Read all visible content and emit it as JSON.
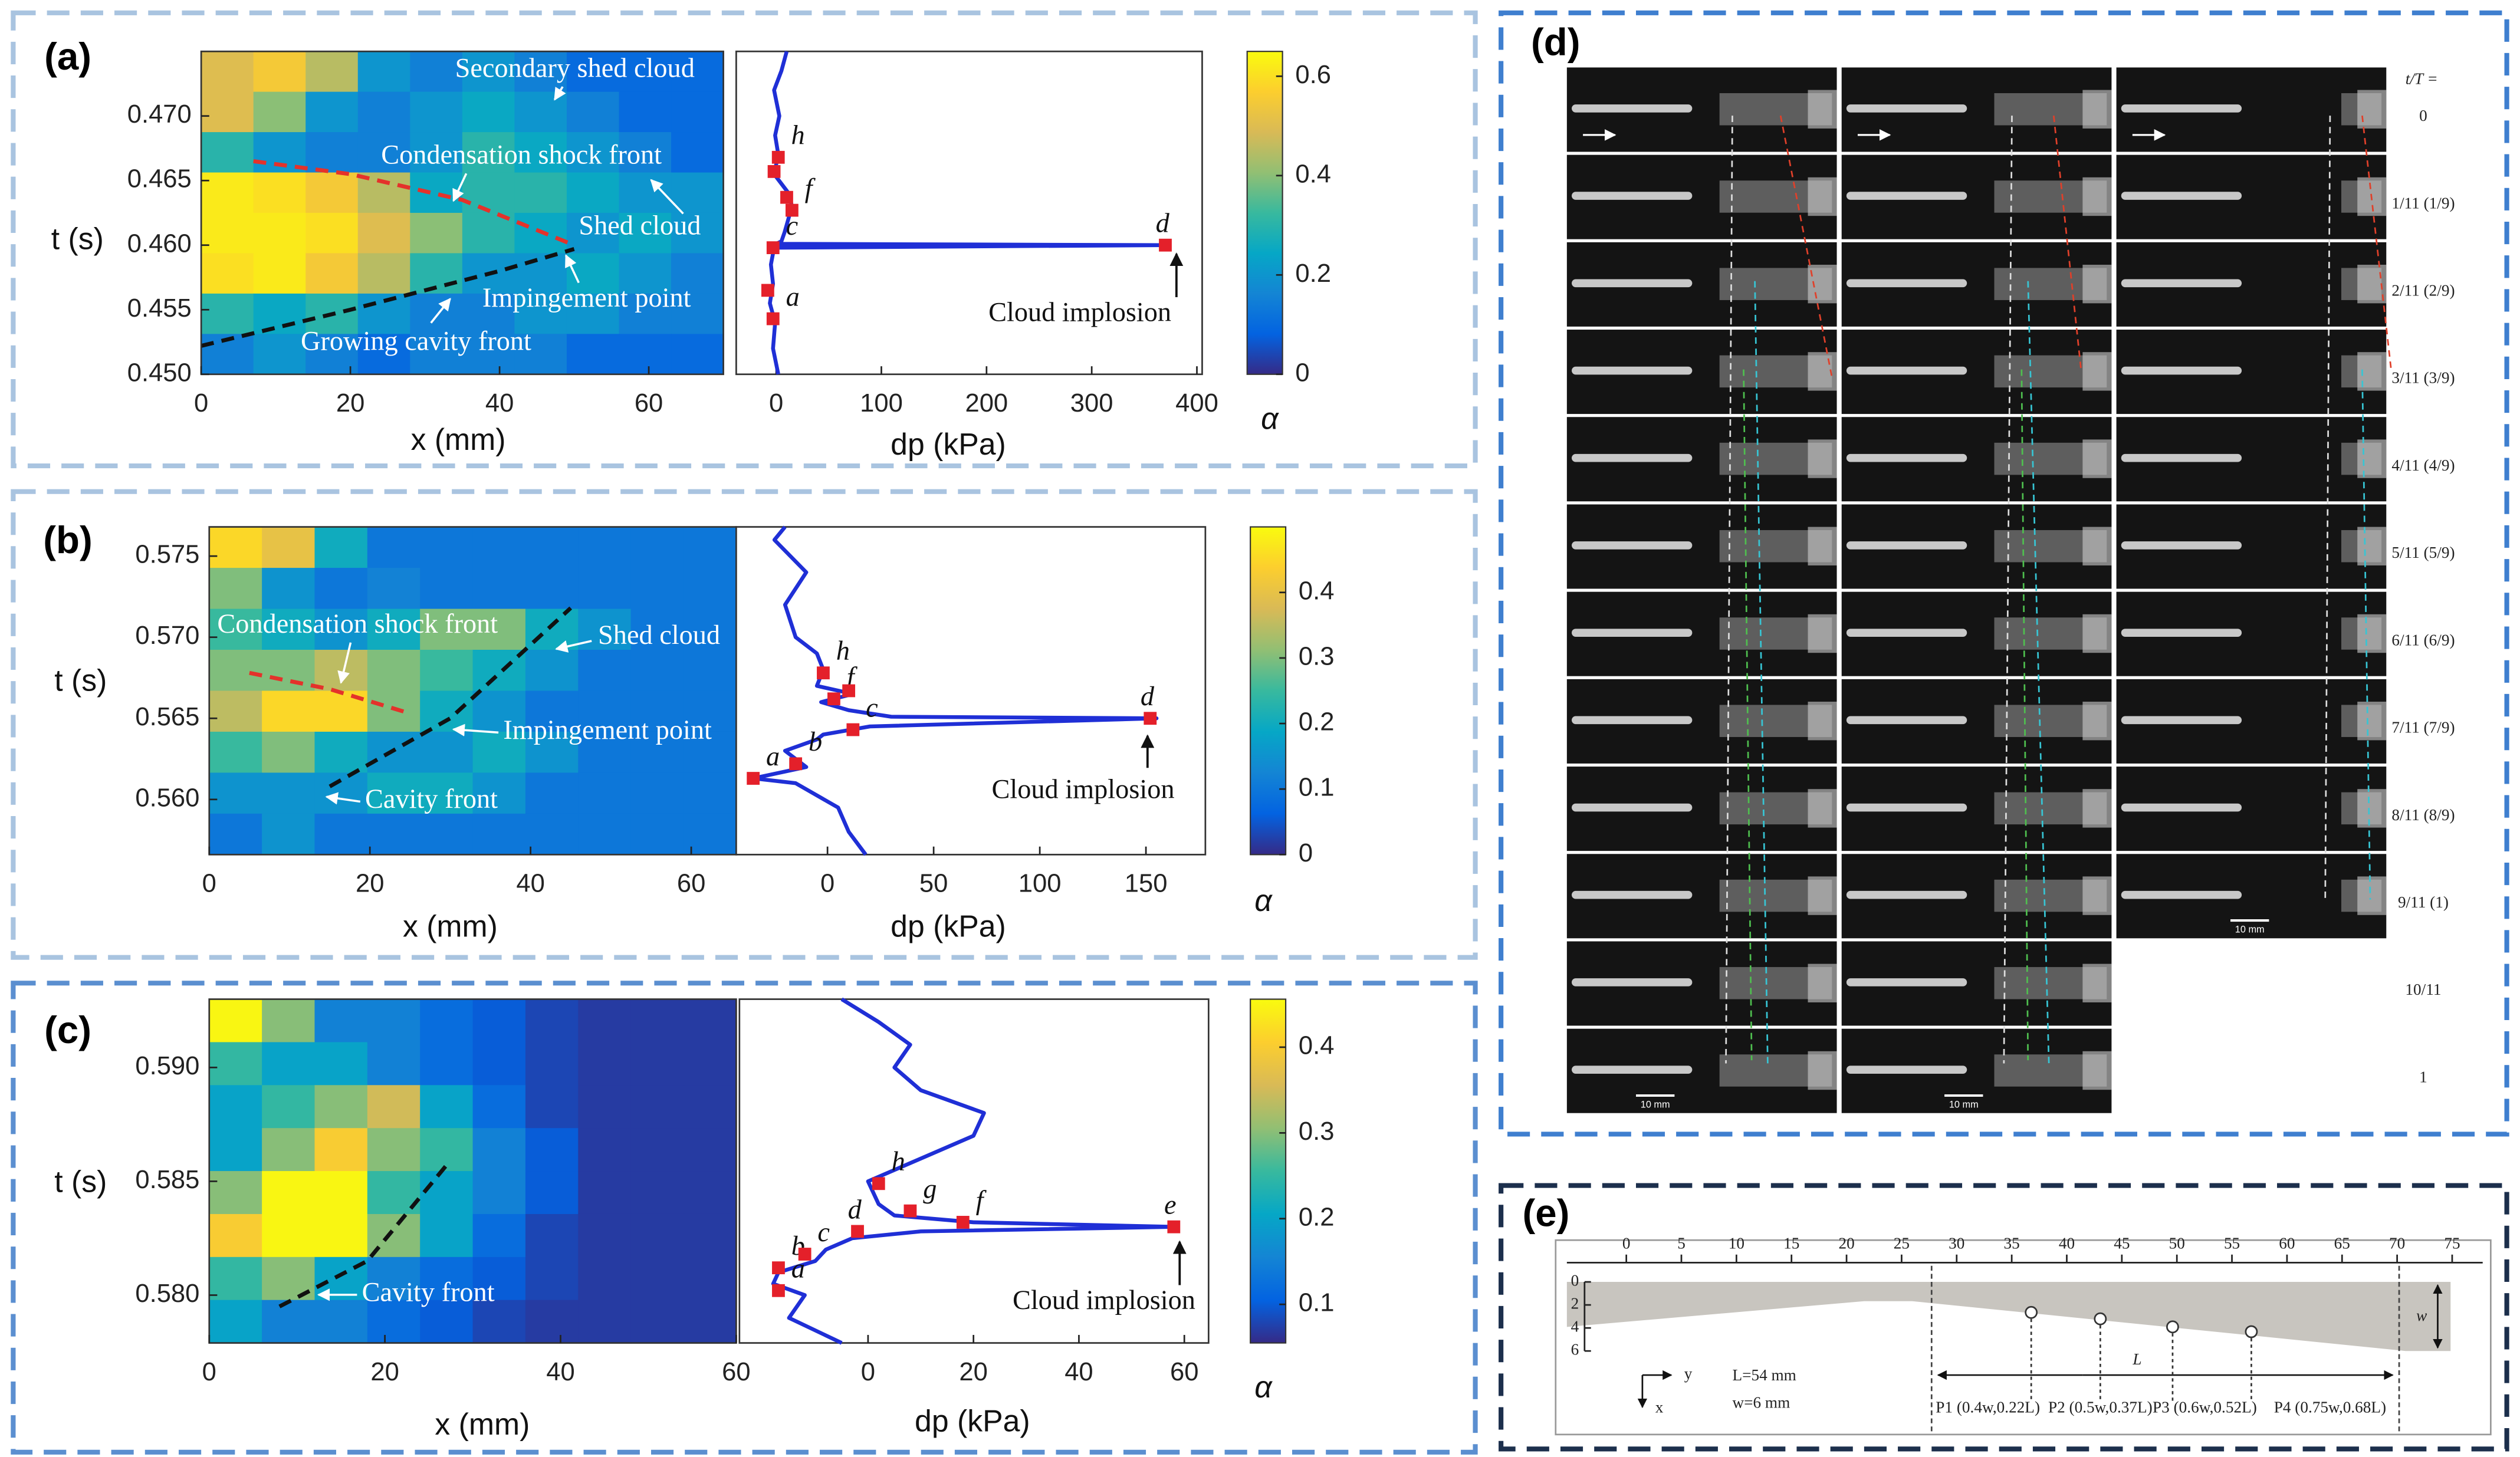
{
  "chart_data": [
    {
      "type": "heatmap",
      "panel_label": "(a)",
      "xlabel": "x (mm)",
      "ylabel": "t (s)",
      "xlim": [
        0,
        70
      ],
      "xticks": [
        0,
        20,
        40,
        60
      ],
      "ylim": [
        0.45,
        0.475
      ],
      "yticks": [
        {
          "value": 0.45,
          "label": "0.450"
        },
        0.455,
        {
          "value": 0.46,
          "label": "0.460"
        },
        0.465,
        {
          "value": 0.47,
          "label": "0.470"
        }
      ],
      "clim": [
        0,
        0.65
      ],
      "cticks": [
        0,
        0.2,
        0.4,
        0.6
      ],
      "clabel": "α",
      "alpha": [
        [
          0.5,
          0.55,
          0.45,
          0.2,
          0.15,
          0.2,
          0.15,
          0.1,
          0.1,
          0.1
        ],
        [
          0.5,
          0.4,
          0.2,
          0.15,
          0.2,
          0.25,
          0.2,
          0.15,
          0.1,
          0.1
        ],
        [
          0.3,
          0.2,
          0.15,
          0.15,
          0.2,
          0.3,
          0.25,
          0.2,
          0.15,
          0.1
        ],
        [
          0.62,
          0.6,
          0.55,
          0.45,
          0.25,
          0.3,
          0.3,
          0.25,
          0.2,
          0.2
        ],
        [
          0.62,
          0.62,
          0.6,
          0.5,
          0.4,
          0.3,
          0.25,
          0.2,
          0.25,
          0.2
        ],
        [
          0.6,
          0.62,
          0.55,
          0.45,
          0.3,
          0.2,
          0.2,
          0.25,
          0.2,
          0.15
        ],
        [
          0.3,
          0.25,
          0.3,
          0.2,
          0.15,
          0.15,
          0.2,
          0.2,
          0.15,
          0.15
        ],
        [
          0.15,
          0.2,
          0.15,
          0.1,
          0.15,
          0.15,
          0.15,
          0.1,
          0.1,
          0.1
        ]
      ],
      "fronts": [
        {
          "color": "#e4322b",
          "x": [
            7,
            20,
            35,
            50
          ],
          "y": [
            0.4665,
            0.4655,
            0.4635,
            0.46
          ]
        },
        {
          "color": "#111111",
          "x": [
            0,
            20,
            40,
            50
          ],
          "y": [
            0.4522,
            0.455,
            0.458,
            0.4597
          ]
        }
      ],
      "annotations": [
        "Secondary shed cloud",
        "Condensation shock front",
        "Shed cloud",
        "Impingement point",
        "Growing cavity front"
      ]
    },
    {
      "type": "line",
      "xlabel": "dp (kPa)",
      "xlim": [
        -38,
        405
      ],
      "xticks": [
        0,
        100,
        200,
        300,
        400
      ],
      "ylim": [
        0.45,
        0.475
      ],
      "color": "#1f2fd6",
      "x": [
        2,
        -3,
        -1,
        -6,
        -3,
        -5,
        -2,
        370,
        0,
        5,
        8,
        15,
        12,
        -2,
        2,
        -1,
        3,
        -2,
        5,
        10
      ],
      "y": [
        0.45,
        0.452,
        0.454,
        0.4555,
        0.457,
        0.4585,
        0.4598,
        0.46,
        0.4601,
        0.4603,
        0.461,
        0.463,
        0.464,
        0.4655,
        0.467,
        0.4685,
        0.47,
        0.472,
        0.4735,
        0.475
      ],
      "markers": {
        "color": "#e4202a",
        "x": [
          -3,
          -8,
          -3,
          370,
          15,
          10,
          -2,
          2
        ],
        "y": [
          0.4543,
          0.4565,
          0.4598,
          0.46,
          0.4627,
          0.4637,
          0.4657,
          0.4668
        ],
        "labels": [
          "a",
          null,
          "c",
          "d",
          "f",
          null,
          null,
          "h"
        ]
      },
      "annotations": [
        "Cloud implosion"
      ]
    },
    {
      "type": "heatmap",
      "panel_label": "(b)",
      "xlabel": "x (mm)",
      "ylabel": "t (s)",
      "xlim": [
        0,
        65.6
      ],
      "xticks": [
        0,
        20,
        40,
        60
      ],
      "ylim": [
        0.5566,
        0.5768
      ],
      "yticks": [
        {
          "value": 0.56,
          "label": "0.560"
        },
        0.565,
        {
          "value": 0.57,
          "label": "0.570"
        },
        0.575
      ],
      "clim": [
        0,
        0.5
      ],
      "cticks": [
        0,
        0.1,
        0.2,
        0.3,
        0.4
      ],
      "clabel": "α",
      "alpha": [
        [
          0.45,
          0.4,
          0.2,
          0.1,
          0.1,
          0.1,
          0.1,
          0.1,
          0.1,
          0.1
        ],
        [
          0.3,
          0.15,
          0.1,
          0.12,
          0.1,
          0.1,
          0.1,
          0.1,
          0.1,
          0.1
        ],
        [
          0.25,
          0.2,
          0.15,
          0.2,
          0.3,
          0.3,
          0.2,
          0.15,
          0.1,
          0.1
        ],
        [
          0.3,
          0.3,
          0.35,
          0.3,
          0.25,
          0.2,
          0.15,
          0.1,
          0.1,
          0.1
        ],
        [
          0.35,
          0.45,
          0.45,
          0.3,
          0.2,
          0.15,
          0.1,
          0.1,
          0.1,
          0.1
        ],
        [
          0.25,
          0.3,
          0.2,
          0.15,
          0.15,
          0.2,
          0.15,
          0.1,
          0.1,
          0.1
        ],
        [
          0.15,
          0.15,
          0.15,
          0.2,
          0.2,
          0.15,
          0.1,
          0.1,
          0.1,
          0.1
        ],
        [
          0.1,
          0.15,
          0.1,
          0.1,
          0.1,
          0.1,
          0.1,
          0.1,
          0.1,
          0.1
        ]
      ],
      "fronts": [
        {
          "color": "#e4322b",
          "x": [
            5,
            15,
            25
          ],
          "y": [
            0.5678,
            0.5668,
            0.5653
          ]
        },
        {
          "color": "#111111",
          "x": [
            15,
            30,
            45
          ],
          "y": [
            0.5608,
            0.565,
            0.5718
          ]
        }
      ],
      "annotations": [
        "Condensation shock front",
        "Shed cloud",
        "Impingement point",
        "Cavity front"
      ]
    },
    {
      "type": "line",
      "xlabel": "dp (kPa)",
      "xlim": [
        -43,
        178
      ],
      "xticks": [
        0,
        50,
        100,
        150
      ],
      "ylim": [
        0.5566,
        0.5768
      ],
      "color": "#1f2fd6",
      "x": [
        18,
        10,
        5,
        -15,
        -35,
        -10,
        -20,
        -5,
        -2,
        20,
        155,
        30,
        10,
        -3,
        12,
        -5,
        -2,
        -5,
        -15,
        -20,
        -10,
        -25,
        -20
      ],
      "y": [
        0.5566,
        0.558,
        0.5595,
        0.561,
        0.5613,
        0.562,
        0.563,
        0.5637,
        0.564,
        0.5645,
        0.565,
        0.5651,
        0.5655,
        0.566,
        0.5665,
        0.567,
        0.568,
        0.569,
        0.57,
        0.572,
        0.574,
        0.576,
        0.5768
      ],
      "markers": {
        "color": "#e4202a",
        "x": [
          -35,
          -15,
          12,
          152,
          3,
          10,
          -2
        ],
        "y": [
          0.5613,
          0.5622,
          0.5643,
          0.565,
          0.5662,
          0.5667,
          0.5678
        ],
        "labels": [
          "a",
          "b",
          "c",
          "d",
          "f",
          null,
          "h"
        ]
      },
      "annotations": [
        "Cloud implosion"
      ]
    },
    {
      "type": "heatmap",
      "panel_label": "(c)",
      "xlabel": "x (mm)",
      "ylabel": "t (s)",
      "xlim": [
        0,
        60
      ],
      "xticks": [
        0,
        20,
        40,
        60
      ],
      "ylim": [
        0.5779,
        0.593
      ],
      "yticks": [
        {
          "value": 0.58,
          "label": "0.580"
        },
        0.585,
        {
          "value": 0.59,
          "label": "0.590"
        }
      ],
      "clim": [
        0.055,
        0.456
      ],
      "cticks": [
        0.1,
        0.2,
        0.3,
        0.4
      ],
      "clabel": "α",
      "alpha": [
        [
          0.45,
          0.3,
          0.15,
          0.15,
          0.12,
          0.1,
          0.08,
          0.07,
          0.07,
          0.07
        ],
        [
          0.25,
          0.2,
          0.2,
          0.15,
          0.12,
          0.1,
          0.08,
          0.07,
          0.07,
          0.07
        ],
        [
          0.2,
          0.25,
          0.3,
          0.35,
          0.2,
          0.12,
          0.08,
          0.07,
          0.07,
          0.07
        ],
        [
          0.2,
          0.3,
          0.4,
          0.3,
          0.25,
          0.15,
          0.1,
          0.07,
          0.07,
          0.07
        ],
        [
          0.3,
          0.45,
          0.45,
          0.25,
          0.2,
          0.15,
          0.1,
          0.07,
          0.07,
          0.07
        ],
        [
          0.4,
          0.45,
          0.45,
          0.3,
          0.2,
          0.12,
          0.08,
          0.07,
          0.07,
          0.07
        ],
        [
          0.25,
          0.3,
          0.2,
          0.15,
          0.12,
          0.1,
          0.08,
          0.07,
          0.07,
          0.07
        ],
        [
          0.2,
          0.15,
          0.15,
          0.12,
          0.1,
          0.08,
          0.07,
          0.07,
          0.07,
          0.07
        ]
      ],
      "fronts": [
        {
          "color": "#111111",
          "x": [
            8,
            18,
            27
          ],
          "y": [
            0.5795,
            0.5815,
            0.5857
          ]
        }
      ],
      "annotations": [
        "Cavity front"
      ]
    },
    {
      "type": "line",
      "xlabel": "dp (kPa)",
      "xlim": [
        -24.4,
        64.6
      ],
      "xticks": [
        0,
        20,
        40,
        60
      ],
      "ylim": [
        0.5779,
        0.593
      ],
      "color": "#1f2fd6",
      "x": [
        -5,
        -15,
        -12,
        -18,
        -17,
        -10,
        -8,
        -3,
        10,
        58,
        20,
        5,
        2,
        0,
        10,
        20,
        22,
        10,
        5,
        8,
        2,
        -5
      ],
      "y": [
        0.5779,
        0.579,
        0.58,
        0.5805,
        0.581,
        0.5815,
        0.582,
        0.5825,
        0.5828,
        0.583,
        0.5832,
        0.5835,
        0.584,
        0.585,
        0.586,
        0.587,
        0.588,
        0.589,
        0.59,
        0.591,
        0.592,
        0.593
      ],
      "markers": {
        "color": "#e4202a",
        "x": [
          -17,
          -17,
          -12,
          -2,
          58,
          18,
          8,
          2
        ],
        "y": [
          0.5802,
          0.5812,
          0.5818,
          0.5828,
          0.583,
          0.5832,
          0.5837,
          0.5849
        ],
        "labels": [
          "a",
          "b",
          "c",
          "d",
          "e",
          "f",
          "g",
          "h"
        ]
      },
      "annotations": [
        "Cloud implosion"
      ]
    }
  ],
  "photo_panel": {
    "label": "(d)",
    "header": "t/T =",
    "frames": [
      "0",
      "1/11 (1/9)",
      "2/11 (2/9)",
      "3/11 (3/9)",
      "4/11 (4/9)",
      "5/11 (5/9)",
      "6/11 (6/9)",
      "7/11 (7/9)",
      "8/11 (8/9)",
      "9/11 (1)",
      "10/11",
      "1"
    ],
    "scale_bar": "10 mm"
  },
  "diagram": {
    "label": "(e)",
    "ruler_ticks": [
      0,
      5,
      10,
      15,
      20,
      25,
      30,
      35,
      40,
      45,
      50,
      55,
      60,
      65,
      70,
      75
    ],
    "depth_ticks": [
      0,
      2,
      4,
      6
    ],
    "length": "L=54 mm",
    "width": "w=6 mm",
    "axis_y": "y",
    "axis_x": "x",
    "length_symbol": "L",
    "width_symbol": "w",
    "points": [
      "P1 (0.4w,0.22L)",
      "P2 (0.5w,0.37L)",
      "P3 (0.6w,0.52L)",
      "P4 (0.75w,0.68L)"
    ]
  }
}
